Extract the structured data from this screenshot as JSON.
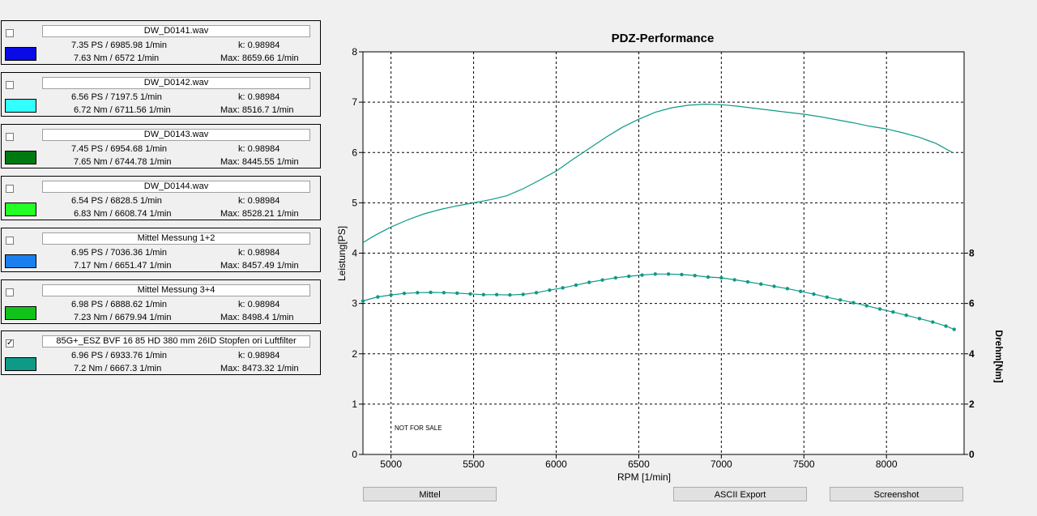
{
  "measurements": [
    {
      "checked": false,
      "name": "DW_D0141.wav",
      "color": "#0a0ae6",
      "power": "7.35 PS / 6985.98 1/min",
      "torque": "7.63 Nm / 6572 1/min",
      "k": "k: 0.98984",
      "max": "Max: 8659.66 1/min"
    },
    {
      "checked": false,
      "name": "DW_D0142.wav",
      "color": "#33ffff",
      "power": "6.56 PS / 7197.5 1/min",
      "torque": "6.72 Nm / 6711.56 1/min",
      "k": "k: 0.98984",
      "max": "Max: 8516.7 1/min"
    },
    {
      "checked": false,
      "name": "DW_D0143.wav",
      "color": "#007a10",
      "power": "7.45 PS / 6954.68 1/min",
      "torque": "7.65 Nm / 6744.78 1/min",
      "k": "k: 0.98984",
      "max": "Max: 8445.55 1/min"
    },
    {
      "checked": false,
      "name": "DW_D0144.wav",
      "color": "#22ff22",
      "power": "6.54 PS / 6828.5 1/min",
      "torque": "6.83 Nm / 6608.74 1/min",
      "k": "k: 0.98984",
      "max": "Max: 8528.21 1/min"
    },
    {
      "checked": false,
      "name": "Mittel Messung 1+2",
      "color": "#1a7fee",
      "power": "6.95 PS / 7036.36 1/min",
      "torque": "7.17 Nm / 6651.47 1/min",
      "k": "k: 0.98984",
      "max": "Max: 8457.49 1/min"
    },
    {
      "checked": false,
      "name": "Mittel Messung 3+4",
      "color": "#11c21a",
      "power": "6.98 PS / 6888.62 1/min",
      "torque": "7.23 Nm / 6679.94 1/min",
      "k": "k: 0.98984",
      "max": "Max: 8498.4 1/min"
    },
    {
      "checked": true,
      "name": "85G+_ESZ BVF 16 85 HD 380 mm 26ID Stopfen ori Luftfilter",
      "color": "#0e9a86",
      "power": "6.96 PS / 6933.76 1/min",
      "torque": "7.2 Nm / 6667.3 1/min",
      "k": "k: 0.98984",
      "max": "Max: 8473.32 1/min"
    }
  ],
  "checkmark": "✓",
  "buttons": {
    "mittel": "Mittel",
    "ascii_export": "ASCII Export",
    "screenshot": "Screenshot"
  },
  "chart_data": {
    "type": "line",
    "title": "PDZ-Performance",
    "xlabel": "RPM [1/min]",
    "ylabel": "Leistung[PS]",
    "y2label": "Drehm[Nm]",
    "watermark": "NOT FOR SALE",
    "xlim": [
      4830,
      8470
    ],
    "ylim": [
      0,
      8
    ],
    "y2lim": [
      0,
      16
    ],
    "xticks": [
      5000,
      5500,
      6000,
      6500,
      7000,
      7500,
      8000
    ],
    "yticks": [
      0,
      1,
      2,
      3,
      4,
      5,
      6,
      7,
      8
    ],
    "y2ticks": [
      0,
      2,
      4,
      6,
      8
    ],
    "grid": true,
    "color": "#0e9a86",
    "series": [
      {
        "axis": "left",
        "markers": false,
        "x": [
          4830,
          4900,
          5000,
          5100,
          5200,
          5300,
          5400,
          5500,
          5600,
          5700,
          5800,
          5900,
          6000,
          6100,
          6200,
          6300,
          6400,
          6500,
          6600,
          6700,
          6800,
          6900,
          7000,
          7100,
          7200,
          7300,
          7400,
          7500,
          7600,
          7700,
          7800,
          7900,
          8000,
          8100,
          8200,
          8300,
          8400
        ],
        "y": [
          4.21,
          4.35,
          4.52,
          4.66,
          4.78,
          4.87,
          4.94,
          5.0,
          5.06,
          5.14,
          5.28,
          5.45,
          5.63,
          5.86,
          6.08,
          6.3,
          6.5,
          6.66,
          6.8,
          6.89,
          6.94,
          6.96,
          6.95,
          6.92,
          6.88,
          6.84,
          6.8,
          6.76,
          6.71,
          6.65,
          6.59,
          6.52,
          6.47,
          6.39,
          6.3,
          6.18,
          6.0
        ]
      },
      {
        "axis": "right",
        "markers": true,
        "x": [
          4830,
          4920,
          5000,
          5080,
          5160,
          5240,
          5320,
          5400,
          5480,
          5560,
          5640,
          5720,
          5800,
          5880,
          5960,
          6040,
          6120,
          6200,
          6280,
          6360,
          6440,
          6520,
          6600,
          6680,
          6760,
          6840,
          6920,
          7000,
          7080,
          7160,
          7240,
          7320,
          7400,
          7480,
          7560,
          7640,
          7720,
          7800,
          7880,
          7960,
          8040,
          8120,
          8200,
          8280,
          8360,
          8410
        ],
        "y": [
          6.1,
          6.26,
          6.34,
          6.4,
          6.43,
          6.44,
          6.43,
          6.41,
          6.38,
          6.35,
          6.35,
          6.34,
          6.36,
          6.43,
          6.53,
          6.62,
          6.73,
          6.84,
          6.93,
          7.02,
          7.08,
          7.13,
          7.17,
          7.17,
          7.15,
          7.11,
          7.05,
          7.02,
          6.94,
          6.86,
          6.77,
          6.68,
          6.59,
          6.48,
          6.37,
          6.25,
          6.14,
          6.03,
          5.91,
          5.78,
          5.66,
          5.53,
          5.4,
          5.26,
          5.1,
          4.97
        ]
      }
    ]
  }
}
